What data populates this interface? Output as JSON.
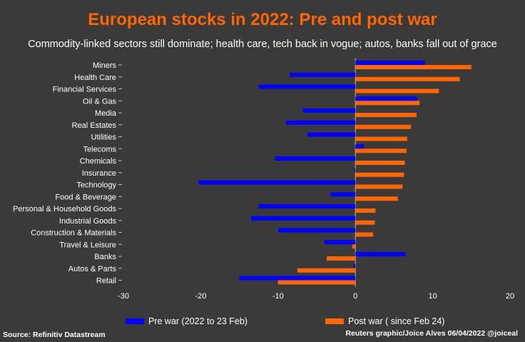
{
  "header": {
    "title": "European stocks in 2022: Pre and post war",
    "subtitle": "Commodity-linked sectors still dominate; health care, tech back in vogue; autos, banks fall out of grace"
  },
  "colors": {
    "title": "#ff6600",
    "pre": "#0000ff",
    "post": "#ff6600",
    "background": "#3a3a3a"
  },
  "chart_data": {
    "type": "bar",
    "orientation": "horizontal",
    "title": "European stocks in 2022: Pre and post war",
    "xlabel": "",
    "ylabel": "",
    "xlim": [
      -30,
      20
    ],
    "xticks": [
      -30,
      -20,
      -10,
      0,
      10,
      20
    ],
    "categories": [
      "Miners",
      "Health Care",
      "Financial Services",
      "Oil & Gas",
      "Media",
      "Real Estates",
      "Utilities",
      "Telecoms",
      "Chemicals",
      "Insurance",
      "Technology",
      "Food & Beverage",
      "Personal & Household Goods",
      "Industrial Goods",
      "Construction & Materials",
      "Travel & Leisure",
      "Banks",
      "Autos & Parts",
      "Retail"
    ],
    "series": [
      {
        "name": "Pre war (2022 to 23 Feb)",
        "color": "#0000ff",
        "values": [
          9.0,
          -8.5,
          -12.5,
          8.0,
          -6.8,
          -9.0,
          -6.2,
          1.1,
          -10.4,
          -0.1,
          -20.3,
          -3.2,
          -12.5,
          -13.5,
          -10.0,
          -4.0,
          6.5,
          -0.2,
          -15.0
        ]
      },
      {
        "name": "Post war ( since Feb 24)",
        "color": "#ff6600",
        "values": [
          15.0,
          13.5,
          10.8,
          8.3,
          7.9,
          7.2,
          6.7,
          6.6,
          6.4,
          6.3,
          6.1,
          5.5,
          2.6,
          2.5,
          2.3,
          -0.4,
          -3.7,
          -7.5,
          -10.0
        ]
      }
    ],
    "legend": {
      "position": "bottom"
    }
  },
  "footer": {
    "source": "Source: Refinitiv Datastream",
    "credit": "Reuters graphic/Joice Alves 06/04/2022 @joiceal"
  }
}
